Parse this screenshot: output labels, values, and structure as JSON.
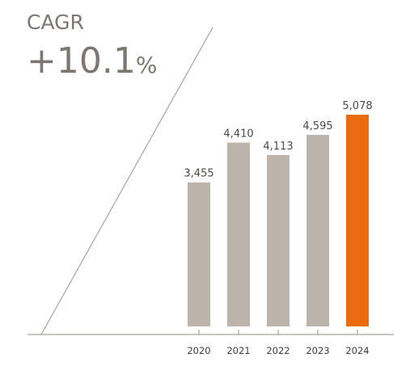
{
  "kpi": {
    "label": "CAGR",
    "value": "+10.1",
    "unit": "%"
  },
  "colors": {
    "bar_default": "#bcb4aa",
    "bar_highlight": "#ea6c0f",
    "text_muted": "#7d776f",
    "text_dark": "#4d4a46"
  },
  "chart_data": {
    "type": "bar",
    "categories": [
      "2020",
      "2021",
      "2022",
      "2023",
      "2024"
    ],
    "values": [
      3455,
      4410,
      4113,
      4595,
      5078
    ],
    "value_labels": [
      "3,455",
      "4,410",
      "4,113",
      "4,595",
      "5,078"
    ],
    "highlight_index": 4,
    "ylim": [
      0,
      5078
    ],
    "grid": false,
    "legend": "none",
    "title": "",
    "xlabel": "",
    "ylabel": ""
  }
}
